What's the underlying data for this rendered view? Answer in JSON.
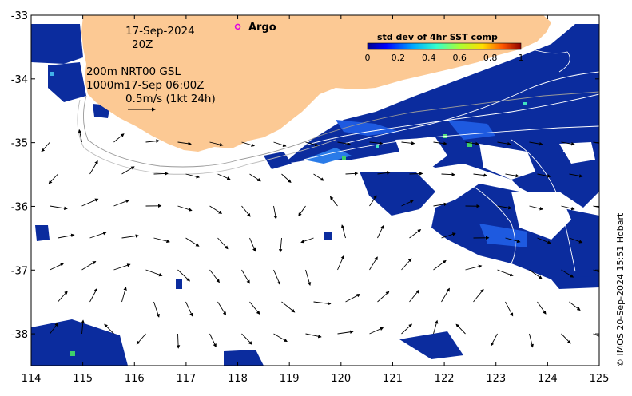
{
  "map": {
    "date": "17-Sep-2024",
    "time": "20Z",
    "legend_line1": "200m  NRT00 GSL",
    "legend_line2": "1000m17-Sep 06:00Z",
    "scale_label": "0.5m/s (1kt 24h)",
    "argo_label": "Argo",
    "credit": "© IMOS 20-Sep-2024 15:51 Hobart",
    "colors": {
      "land": "#fcc994",
      "ocean": "#ffffff",
      "sst_low": "#0a2aa0",
      "sst_mid": "#1e50d8",
      "argo": "#e000e0"
    }
  },
  "colorbar": {
    "title": "std dev of 4hr SST comp",
    "ticks": [
      "0",
      "0.2",
      "0.4",
      "0.6",
      "0.8",
      "1"
    ]
  },
  "axes": {
    "x_ticks": [
      "114",
      "115",
      "116",
      "117",
      "118",
      "119",
      "120",
      "121",
      "122",
      "123",
      "124",
      "125"
    ],
    "y_ticks": [
      "-33",
      "-34",
      "-35",
      "-36",
      "-37",
      "-38"
    ],
    "lon_range": [
      114,
      125
    ],
    "lat_range": [
      -38.5,
      -33
    ]
  },
  "argo_floats": [
    {
      "lon": 118.0,
      "lat": -33.18
    }
  ]
}
